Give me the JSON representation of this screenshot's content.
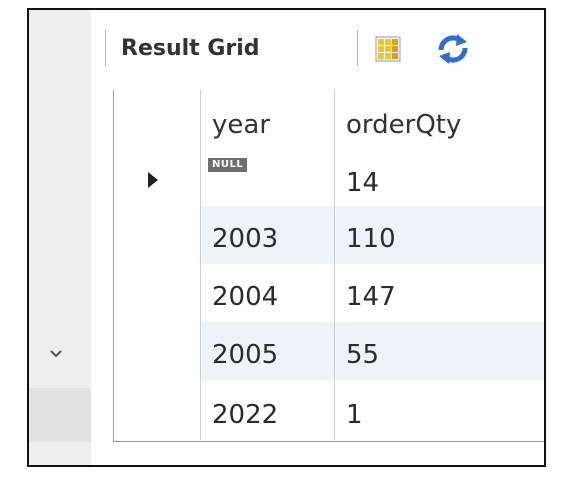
{
  "toolbar": {
    "result_grid_label": "Result Grid",
    "icons": [
      "grid-layout-icon",
      "refresh-icon"
    ]
  },
  "gutter": {
    "icons": [
      "chevron-down-icon"
    ]
  },
  "grid": {
    "columns": [
      "year",
      "orderQty"
    ],
    "rows": [
      {
        "year": "NULL",
        "year_is_null": true,
        "orderQty": "14",
        "current": true
      },
      {
        "year": "2003",
        "orderQty": "110"
      },
      {
        "year": "2004",
        "orderQty": "147"
      },
      {
        "year": "2005",
        "orderQty": "55"
      },
      {
        "year": "2022",
        "orderQty": "1"
      }
    ]
  },
  "colors": {
    "alt_row": "#eef3fb",
    "null_badge": "#6e6e6e",
    "refresh_blue": "#2f6fd0",
    "grid_icon_yellow": "#f3c431"
  }
}
